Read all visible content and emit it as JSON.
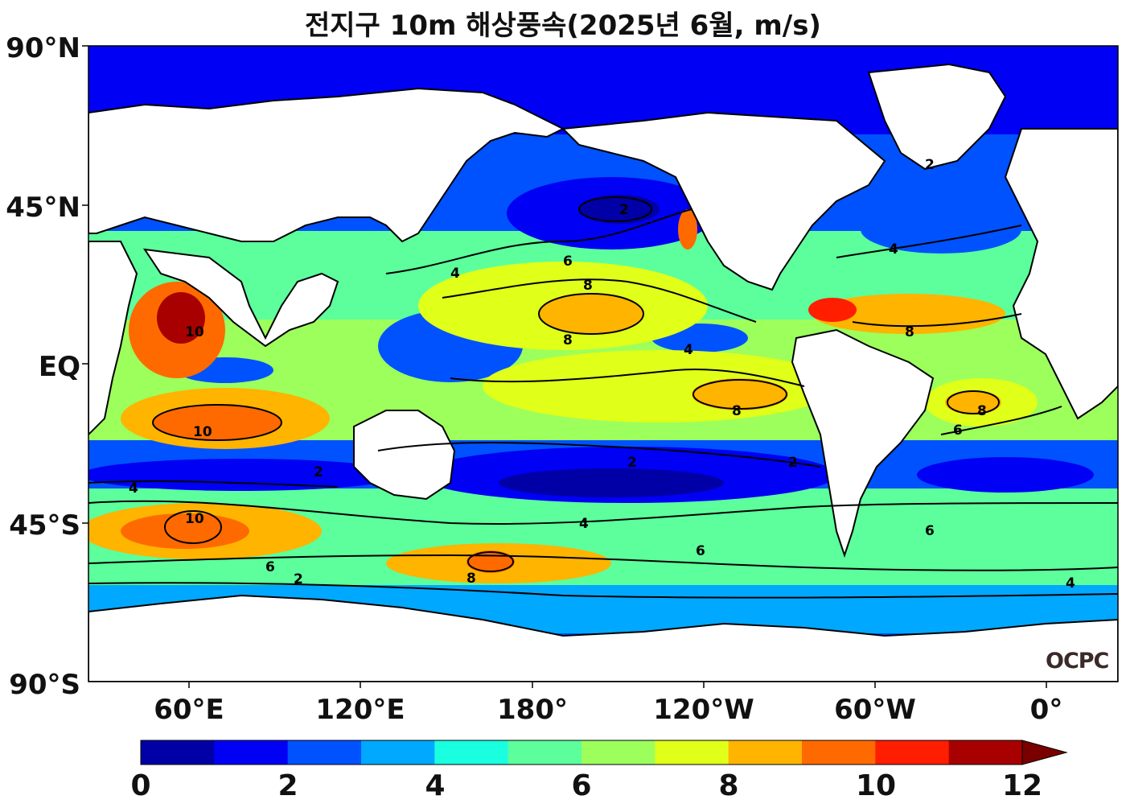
{
  "title": "전지구 10m 해상풍속(2025년 6월, m/s)",
  "lat_labels": [
    "90°N",
    "45°N",
    "EQ",
    "45°S",
    "90°S"
  ],
  "lat_values": [
    90,
    45,
    0,
    -45,
    -90
  ],
  "lon_labels": [
    "60°E",
    "120°E",
    "180°",
    "120°W",
    "60°W",
    "0°"
  ],
  "lon_values": [
    60,
    120,
    180,
    240,
    300,
    360
  ],
  "map_extent": {
    "lon_min": 25,
    "lon_max": 385,
    "lat_min": -90,
    "lat_max": 90
  },
  "colorbar": {
    "labels": [
      "0",
      "2",
      "4",
      "6",
      "8",
      "10",
      "12"
    ],
    "min": 0,
    "max": 12,
    "step": 1,
    "extend": "max",
    "colors": [
      "#0000a6",
      "#0000f5",
      "#0052ff",
      "#00a8ff",
      "#19ffe0",
      "#5cff9c",
      "#9cff5c",
      "#e0ff19",
      "#ffb400",
      "#ff6a00",
      "#ff1e00",
      "#a80000"
    ],
    "extend_color": "#7a0000"
  },
  "contour_labels": [
    "2",
    "4",
    "6",
    "8",
    "10"
  ],
  "watermark": "OCPC",
  "colors": {
    "land": "#ffffff",
    "frame": "#000000",
    "coast": "#000000"
  }
}
